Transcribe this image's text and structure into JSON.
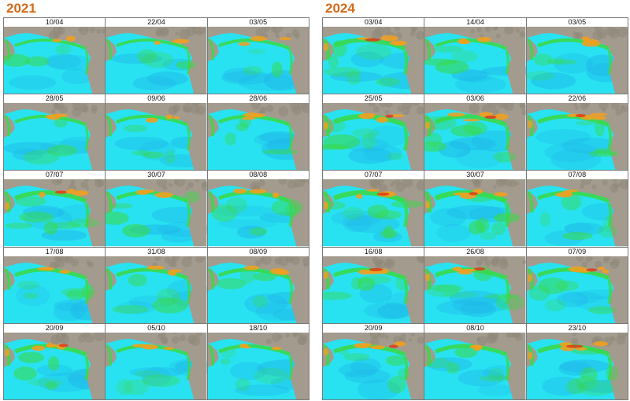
{
  "panels": [
    {
      "year": "2021",
      "dates": [
        "10/04",
        "22/04",
        "03/05",
        "28/05",
        "09/06",
        "28/06",
        "07/07",
        "30/07",
        "08/08",
        "17/08",
        "31/08",
        "08/09",
        "20/09",
        "05/10",
        "18/10"
      ],
      "bloom": [
        0.35,
        0.35,
        0.4,
        0.4,
        0.45,
        0.5,
        0.7,
        0.55,
        0.6,
        0.6,
        0.55,
        0.55,
        0.65,
        0.45,
        0.5
      ]
    },
    {
      "year": "2024",
      "dates": [
        "03/04",
        "14/04",
        "03/05",
        "25/05",
        "03/06",
        "22/06",
        "07/07",
        "30/07",
        "07/08",
        "16/08",
        "26/08",
        "07/09",
        "20/09",
        "08/10",
        "23/10"
      ],
      "bloom": [
        0.75,
        0.45,
        0.5,
        0.85,
        0.7,
        0.65,
        0.85,
        0.9,
        0.6,
        0.65,
        0.7,
        0.65,
        0.65,
        0.6,
        0.7
      ]
    }
  ],
  "colors": {
    "water": "#28e2f2",
    "land": "#a39b8e",
    "bloom_low": "#39d94a",
    "bloom_high": "#f0a020",
    "bloom_peak": "#e03a1a",
    "title": "#d46a18"
  }
}
